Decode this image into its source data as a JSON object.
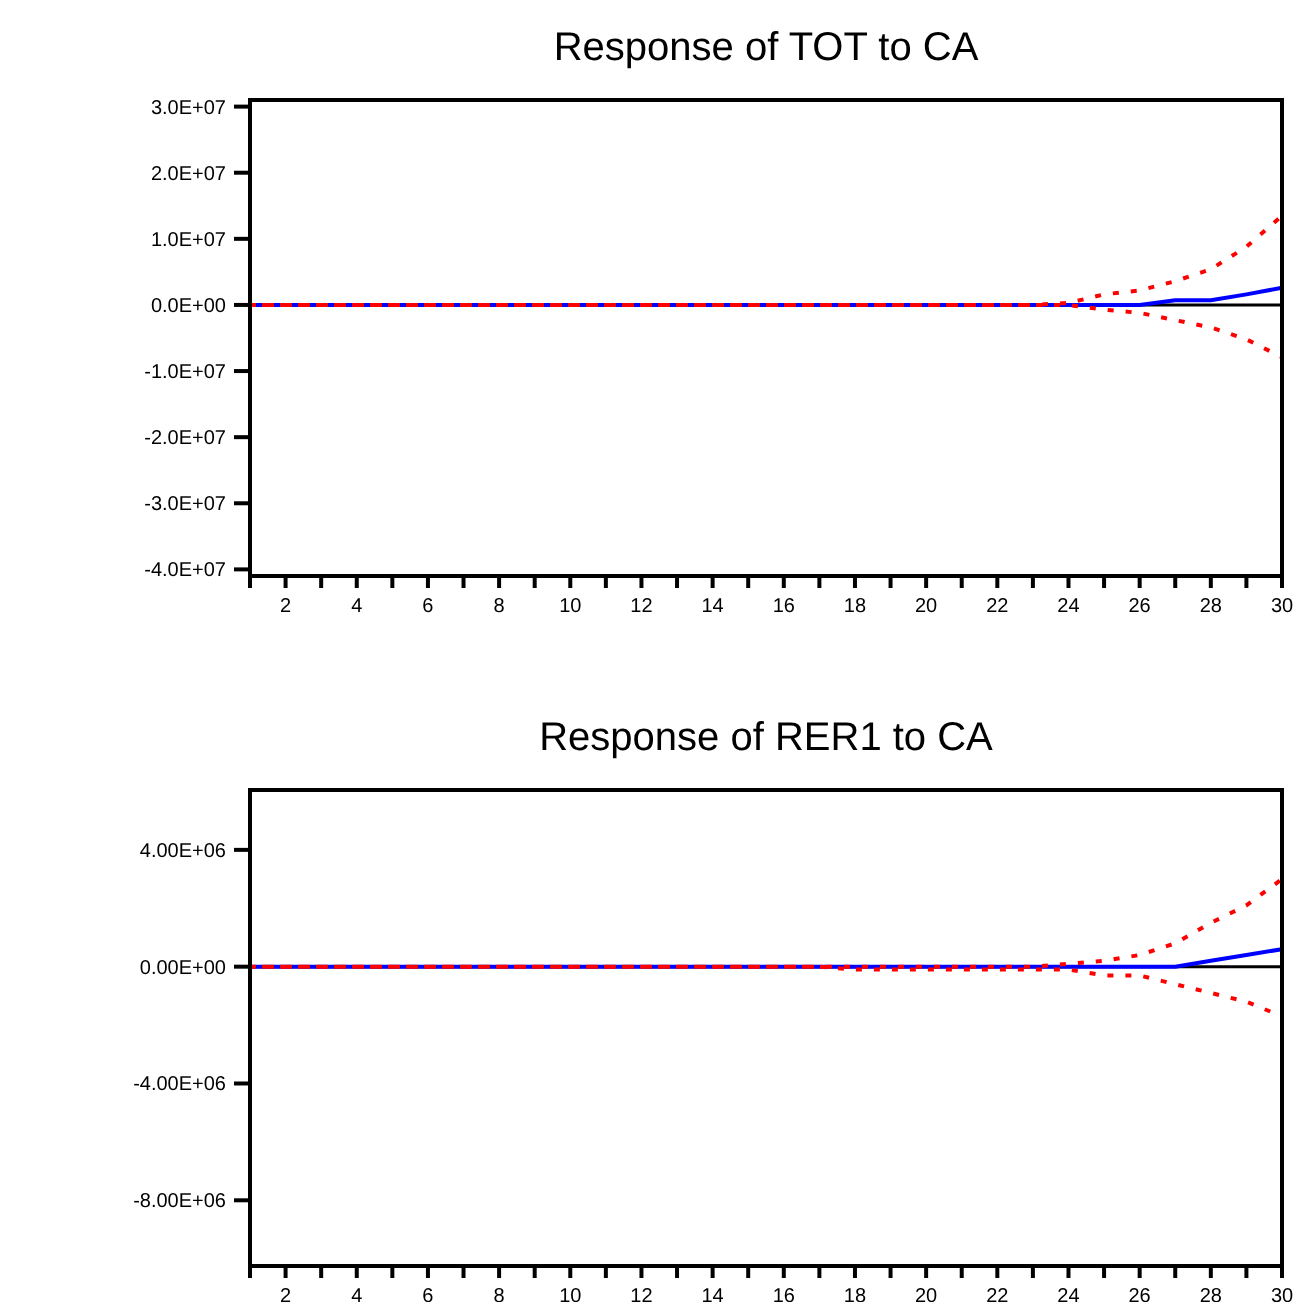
{
  "chart_data": [
    {
      "type": "line",
      "title": "Response of TOT to CA",
      "x": [
        1,
        2,
        3,
        4,
        5,
        6,
        7,
        8,
        9,
        10,
        11,
        12,
        13,
        14,
        15,
        16,
        17,
        18,
        19,
        20,
        21,
        22,
        23,
        24,
        25,
        26,
        27,
        28,
        29,
        30
      ],
      "xlim": [
        1,
        30
      ],
      "xticks": [
        {
          "value": 1,
          "label": null
        },
        2,
        {
          "value": 3,
          "label": null
        },
        4,
        {
          "value": 5,
          "label": null
        },
        6,
        {
          "value": 7,
          "label": null
        },
        8,
        {
          "value": 9,
          "label": null
        },
        10,
        {
          "value": 11,
          "label": null
        },
        12,
        {
          "value": 13,
          "label": null
        },
        14,
        {
          "value": 15,
          "label": null
        },
        16,
        {
          "value": 17,
          "label": null
        },
        18,
        {
          "value": 19,
          "label": null
        },
        20,
        {
          "value": 21,
          "label": null
        },
        22,
        {
          "value": 23,
          "label": null
        },
        24,
        {
          "value": 25,
          "label": null
        },
        26,
        {
          "value": 27,
          "label": null
        },
        28,
        {
          "value": 29,
          "label": null
        },
        30
      ],
      "ylim": [
        -41000000,
        31000000
      ],
      "yticks": [
        {
          "value": 30000000,
          "label": "3.0E+07"
        },
        {
          "value": 20000000,
          "label": "2.0E+07"
        },
        {
          "value": 10000000,
          "label": "1.0E+07"
        },
        {
          "value": 0,
          "label": "0.0E+00"
        },
        {
          "value": -10000000,
          "label": "-1.0E+07"
        },
        {
          "value": -20000000,
          "label": "-2.0E+07"
        },
        {
          "value": -30000000,
          "label": "-3.0E+07"
        },
        {
          "value": -40000000,
          "label": "-4.0E+07"
        }
      ],
      "grid": false,
      "ref_lines": [
        {
          "axis": "y",
          "value": 0,
          "color": "#000000"
        }
      ],
      "series": [
        {
          "color": "#ff0000",
          "line_style": "dashed",
          "values": [
            0,
            0,
            0,
            0,
            0,
            0,
            0,
            0,
            0,
            0,
            0,
            0,
            0,
            0,
            0,
            0,
            0,
            0,
            0,
            0,
            0,
            0,
            0,
            300000,
            1600000,
            2200000,
            3600000,
            5400000,
            8800000,
            13500000
          ]
        },
        {
          "color": "#ff0000",
          "line_style": "dashed",
          "values": [
            0,
            0,
            0,
            0,
            0,
            0,
            0,
            0,
            0,
            0,
            0,
            0,
            0,
            0,
            0,
            0,
            0,
            0,
            0,
            0,
            0,
            0,
            0,
            0,
            -700000,
            -1200000,
            -2300000,
            -3400000,
            -5200000,
            -7900000
          ]
        },
        {
          "color": "#0000ff",
          "line_style": "solid",
          "values": [
            0,
            0,
            0,
            0,
            0,
            0,
            0,
            0,
            0,
            0,
            0,
            0,
            0,
            0,
            0,
            0,
            0,
            0,
            0,
            0,
            0,
            0,
            0,
            0,
            0,
            0,
            700000,
            700000,
            1600000,
            2600000
          ]
        }
      ]
    },
    {
      "type": "line",
      "title": "Response of RER1 to CA",
      "x": [
        1,
        2,
        3,
        4,
        5,
        6,
        7,
        8,
        9,
        10,
        11,
        12,
        13,
        14,
        15,
        16,
        17,
        18,
        19,
        20,
        21,
        22,
        23,
        24,
        25,
        26,
        27,
        28,
        29,
        30
      ],
      "xlim": [
        1,
        30
      ],
      "xticks": [
        {
          "value": 1,
          "label": null
        },
        2,
        {
          "value": 3,
          "label": null
        },
        4,
        {
          "value": 5,
          "label": null
        },
        6,
        {
          "value": 7,
          "label": null
        },
        8,
        {
          "value": 9,
          "label": null
        },
        10,
        {
          "value": 11,
          "label": null
        },
        12,
        {
          "value": 13,
          "label": null
        },
        14,
        {
          "value": 15,
          "label": null
        },
        16,
        {
          "value": 17,
          "label": null
        },
        18,
        {
          "value": 19,
          "label": null
        },
        20,
        {
          "value": 21,
          "label": null
        },
        22,
        {
          "value": 23,
          "label": null
        },
        24,
        {
          "value": 25,
          "label": null
        },
        26,
        {
          "value": 27,
          "label": null
        },
        28,
        {
          "value": 29,
          "label": null
        },
        30
      ],
      "ylim": [
        -10250000,
        6050000
      ],
      "yticks": [
        {
          "value": 4000000,
          "label": "4.00E+06"
        },
        {
          "value": 0,
          "label": "0.00E+00"
        },
        {
          "value": -4000000,
          "label": "-4.00E+06"
        },
        {
          "value": -8000000,
          "label": "-8.00E+06"
        }
      ],
      "grid": false,
      "ref_lines": [
        {
          "axis": "y",
          "value": 0,
          "color": "#000000"
        }
      ],
      "series": [
        {
          "color": "#ff0000",
          "line_style": "dashed",
          "values": [
            0,
            0,
            0,
            0,
            0,
            0,
            0,
            0,
            0,
            0,
            0,
            0,
            0,
            0,
            0,
            0,
            0,
            0,
            0,
            0,
            0,
            0,
            0,
            100000,
            200000,
            400000,
            800000,
            1500000,
            2100000,
            3000000
          ]
        },
        {
          "color": "#ff0000",
          "line_style": "dashed",
          "values": [
            0,
            0,
            0,
            0,
            0,
            0,
            0,
            0,
            0,
            0,
            0,
            0,
            0,
            0,
            0,
            0,
            0,
            -100000,
            -100000,
            -100000,
            -100000,
            -100000,
            -100000,
            -100000,
            -300000,
            -300000,
            -600000,
            -900000,
            -1200000,
            -1700000
          ]
        },
        {
          "color": "#0000ff",
          "line_style": "solid",
          "values": [
            0,
            0,
            0,
            0,
            0,
            0,
            0,
            0,
            0,
            0,
            0,
            0,
            0,
            0,
            0,
            0,
            0,
            0,
            0,
            0,
            0,
            0,
            0,
            0,
            0,
            0,
            0,
            200000,
            400000,
            600000
          ]
        }
      ]
    }
  ]
}
